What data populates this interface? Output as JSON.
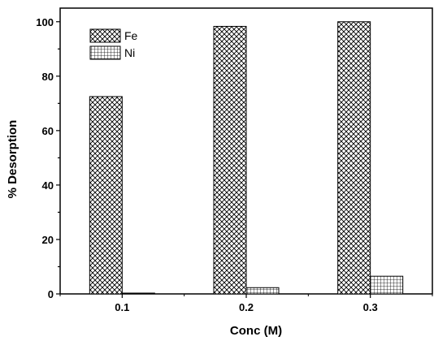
{
  "chart_data": {
    "type": "bar",
    "categories": [
      "0.1",
      "0.2",
      "0.3"
    ],
    "series": [
      {
        "name": "Fe",
        "values": [
          72.5,
          98.3,
          100.0
        ],
        "pattern": "crosshatch-diagonal"
      },
      {
        "name": "Ni",
        "values": [
          0.3,
          2.3,
          6.5
        ],
        "pattern": "grid-square"
      }
    ],
    "xlabel": "Conc (M)",
    "ylabel": "% Desorption",
    "ylim": [
      0,
      105
    ],
    "yticks": [
      0,
      20,
      40,
      60,
      80,
      100
    ],
    "grid": false,
    "legend_position": "top-left",
    "colors": {
      "bar_fill": "#ffffff",
      "stroke": "#000000"
    }
  }
}
